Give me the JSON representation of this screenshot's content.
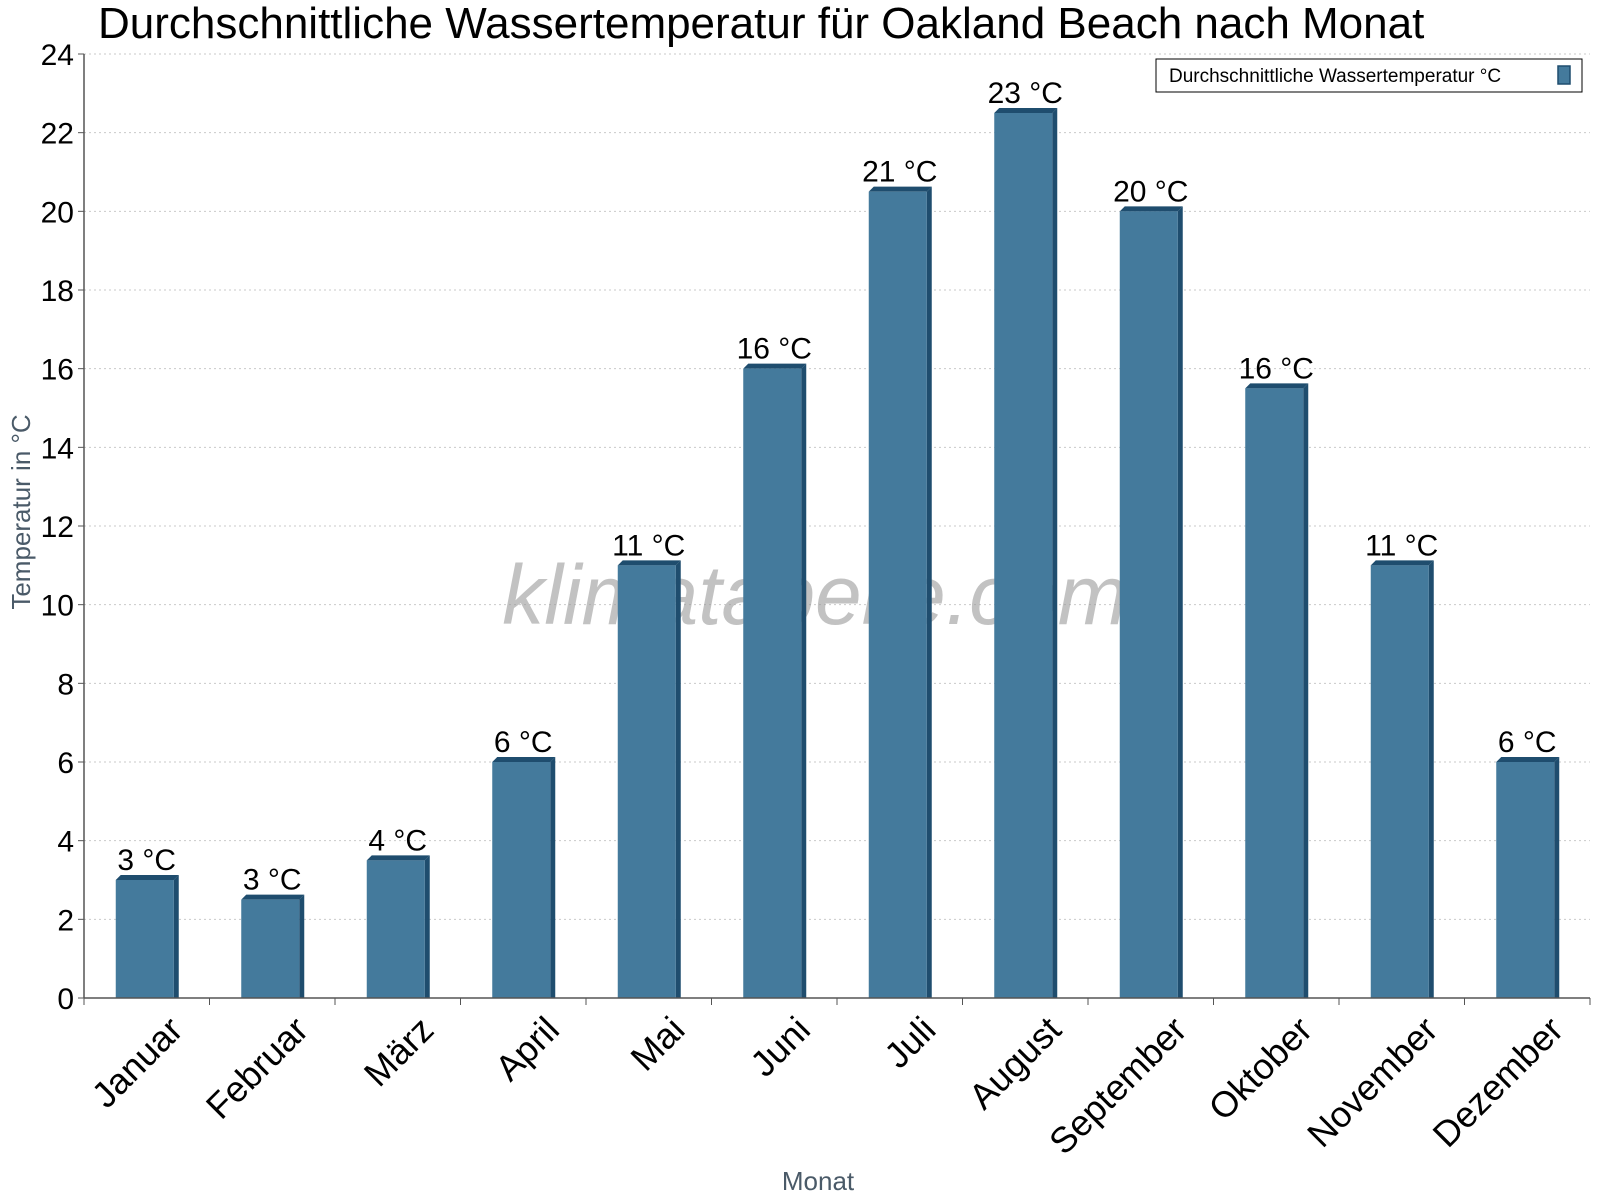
{
  "chart_data": {
    "type": "bar",
    "title": "Durchschnittliche Wassertemperatur für Oakland Beach nach Monat",
    "xlabel": "Monat",
    "ylabel": "Temperatur in °C",
    "categories": [
      "Januar",
      "Februar",
      "März",
      "April",
      "Mai",
      "Juni",
      "Juli",
      "August",
      "September",
      "Oktober",
      "November",
      "Dezember"
    ],
    "series": [
      {
        "name": "Durchschnittliche Wassertemperatur °C",
        "values": [
          3.0,
          2.5,
          3.5,
          6.0,
          11.0,
          16.0,
          20.5,
          22.5,
          20.0,
          15.5,
          11.0,
          6.0
        ],
        "data_labels": [
          "3 °C",
          "3 °C",
          "4 °C",
          "6 °C",
          "11 °C",
          "16 °C",
          "21 °C",
          "23 °C",
          "20 °C",
          "16 °C",
          "11 °C",
          "6 °C"
        ]
      }
    ],
    "ylim": [
      0,
      24
    ],
    "yticks": [
      0,
      2,
      4,
      6,
      8,
      10,
      12,
      14,
      16,
      18,
      20,
      22,
      24
    ],
    "grid": true,
    "legend_position": "top-right",
    "colors": {
      "bar": "#447a9c",
      "bar_side": "#1f4d6e"
    },
    "watermark": "klimatabelle.com"
  }
}
